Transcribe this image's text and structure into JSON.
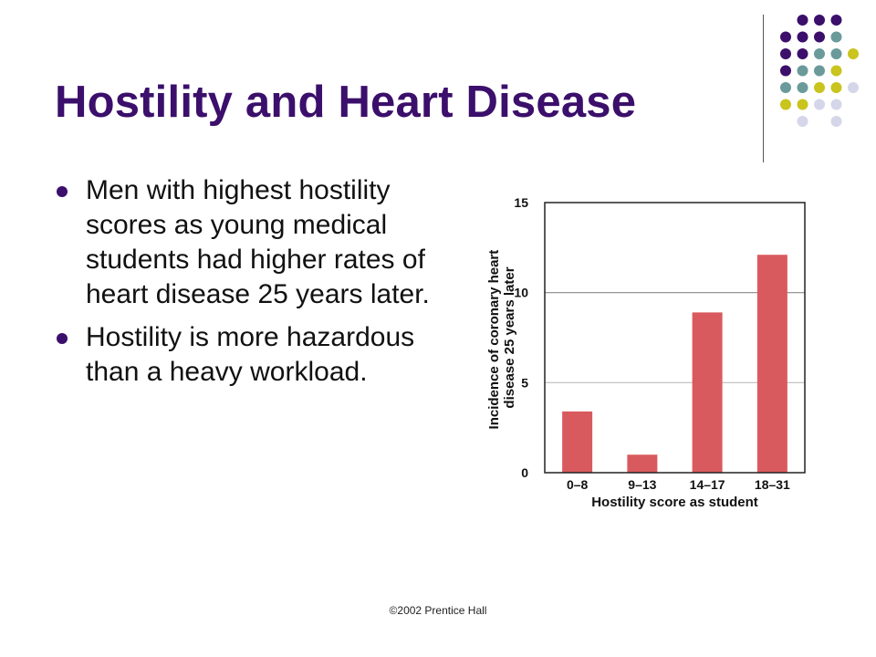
{
  "slide": {
    "title": "Hostility and Heart Disease",
    "bullets": [
      "Men with highest hostility scores as young medical students had higher rates of heart disease 25 years later.",
      "Hostility is more hazardous than a heavy workload."
    ],
    "footer": "©2002 Prentice Hall"
  },
  "theme": {
    "title_color": "#3b0f6b",
    "dot_colors": {
      "purple": "#3b0f6b",
      "teal": "#6b9a9a",
      "yellow": "#c9c41e",
      "lavender": "#d6d6ea"
    },
    "bar_color": "#d95a5e"
  },
  "chart_data": {
    "type": "bar",
    "categories": [
      "0–8",
      "9–13",
      "14–17",
      "18–31"
    ],
    "values": [
      3.4,
      1.0,
      8.9,
      12.1
    ],
    "xlabel": "Hostility score as student",
    "ylabel": "Incidence of coronary heart disease 25 years later",
    "ylabel_lines": [
      "Incidence of coronary heart",
      "disease 25 years later"
    ],
    "ylim": [
      0,
      15
    ],
    "yticks": [
      0,
      5,
      10,
      15
    ],
    "grid": "horizontal",
    "legend": "none"
  }
}
